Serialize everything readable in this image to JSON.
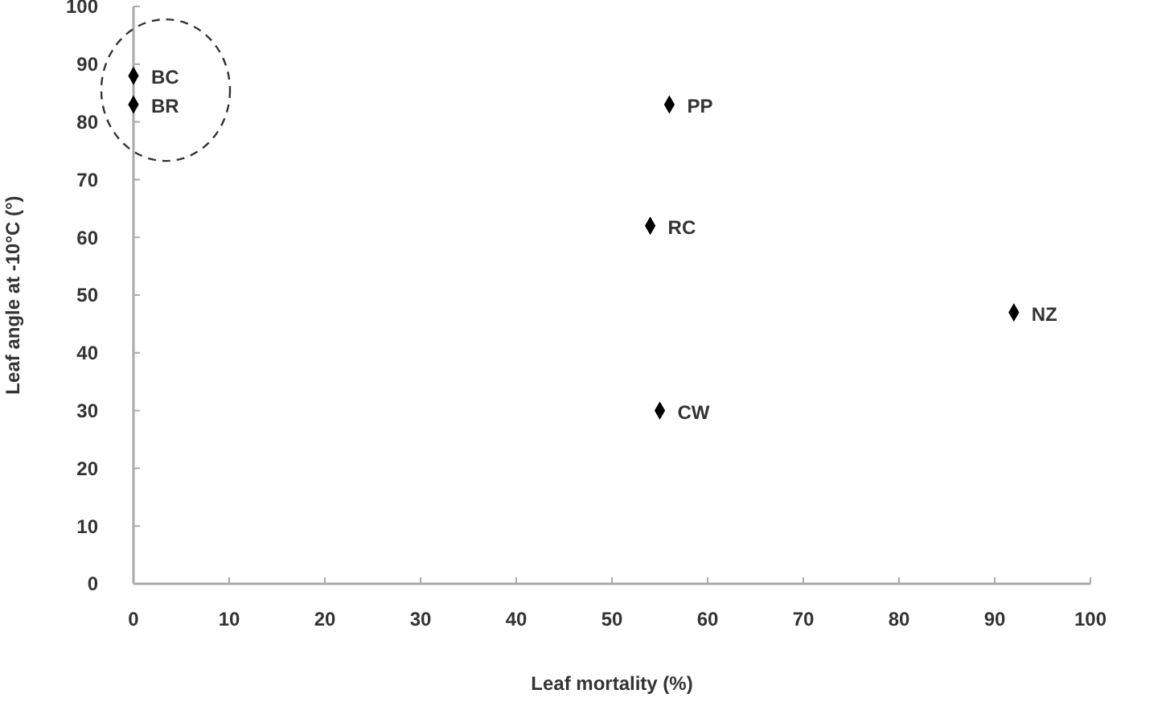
{
  "chart_data": {
    "type": "scatter",
    "xlabel": "Leaf mortality (%)",
    "ylabel": "Leaf angle at -10°C (°)",
    "x": [
      0,
      0,
      56,
      54,
      92,
      55
    ],
    "series": [
      {
        "color": "#000000",
        "values": [
          88,
          83,
          83,
          62,
          47,
          30
        ]
      }
    ],
    "xlim": [
      0,
      100
    ],
    "xticks": [
      0,
      10,
      20,
      30,
      40,
      50,
      60,
      70,
      80,
      90,
      100
    ],
    "ylim": [
      0,
      100
    ],
    "yticks": [
      0,
      10,
      20,
      30,
      40,
      50,
      60,
      70,
      80,
      90,
      100
    ],
    "marker": "diamond",
    "grid": false,
    "annotations": [
      {
        "text": "BC",
        "x": 0,
        "y": 88
      },
      {
        "text": "BR",
        "x": 0,
        "y": 83
      },
      {
        "text": "PP",
        "x": 56,
        "y": 83
      },
      {
        "text": "RC",
        "x": 54,
        "y": 62
      },
      {
        "text": "NZ",
        "x": 92,
        "y": 47
      },
      {
        "text": "CW",
        "x": 55,
        "y": 30
      }
    ]
  }
}
